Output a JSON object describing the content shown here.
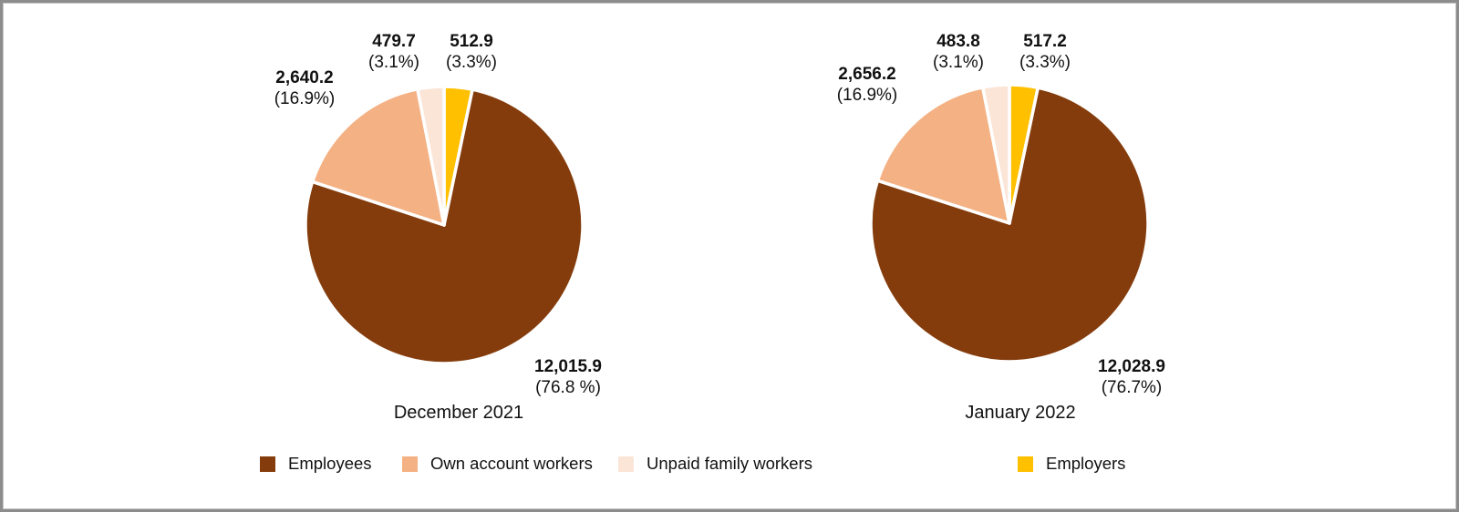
{
  "frame": {
    "background": "#ffffff",
    "border_color": "#8c8c8c"
  },
  "colors": {
    "employees": "#843C0C",
    "own_account_workers": "#F4B183",
    "unpaid_family_workers": "#FBE5D6",
    "employers": "#FFC000",
    "text": "#111111",
    "slice_separator": "#ffffff"
  },
  "legend": {
    "position": "bottom",
    "items": [
      {
        "label": "Employees",
        "color": "#843C0C"
      },
      {
        "label": "Own account workers",
        "color": "#F4B183"
      },
      {
        "label": "Unpaid family workers",
        "color": "#FBE5D6"
      },
      {
        "label": "Employers",
        "color": "#FFC000"
      }
    ]
  },
  "chart_data": {
    "type": "pie",
    "legend_position": "bottom",
    "draw_order_clockwise_from_top": [
      "Employers",
      "Employees",
      "Own account workers",
      "Unpaid family workers"
    ],
    "charts": [
      {
        "title": "December 2021",
        "slices": [
          {
            "category": "Employees",
            "value": 12015.9,
            "value_label": "12,015.9",
            "percent": 76.8,
            "pct_label": "(76.8 %)",
            "color": "#843C0C"
          },
          {
            "category": "Own account workers",
            "value": 2640.2,
            "value_label": "2,640.2",
            "percent": 16.9,
            "pct_label": "(16.9%)",
            "color": "#F4B183"
          },
          {
            "category": "Unpaid family workers",
            "value": 479.7,
            "value_label": "479.7",
            "percent": 3.1,
            "pct_label": "(3.1%)",
            "color": "#FBE5D6"
          },
          {
            "category": "Employers",
            "value": 512.9,
            "value_label": "512.9",
            "percent": 3.3,
            "pct_label": "(3.3%)",
            "color": "#FFC000"
          }
        ]
      },
      {
        "title": "January 2022",
        "slices": [
          {
            "category": "Employees",
            "value": 12028.9,
            "value_label": "12,028.9",
            "percent": 76.7,
            "pct_label": "(76.7%)",
            "color": "#843C0C"
          },
          {
            "category": "Own account workers",
            "value": 2656.2,
            "value_label": "2,656.2",
            "percent": 16.9,
            "pct_label": "(16.9%)",
            "color": "#F4B183"
          },
          {
            "category": "Unpaid family workers",
            "value": 483.8,
            "value_label": "483.8",
            "percent": 3.1,
            "pct_label": "(3.1%)",
            "color": "#FBE5D6"
          },
          {
            "category": "Employers",
            "value": 517.2,
            "value_label": "517.2",
            "percent": 3.3,
            "pct_label": "(3.3%)",
            "color": "#FFC000"
          }
        ]
      }
    ]
  }
}
